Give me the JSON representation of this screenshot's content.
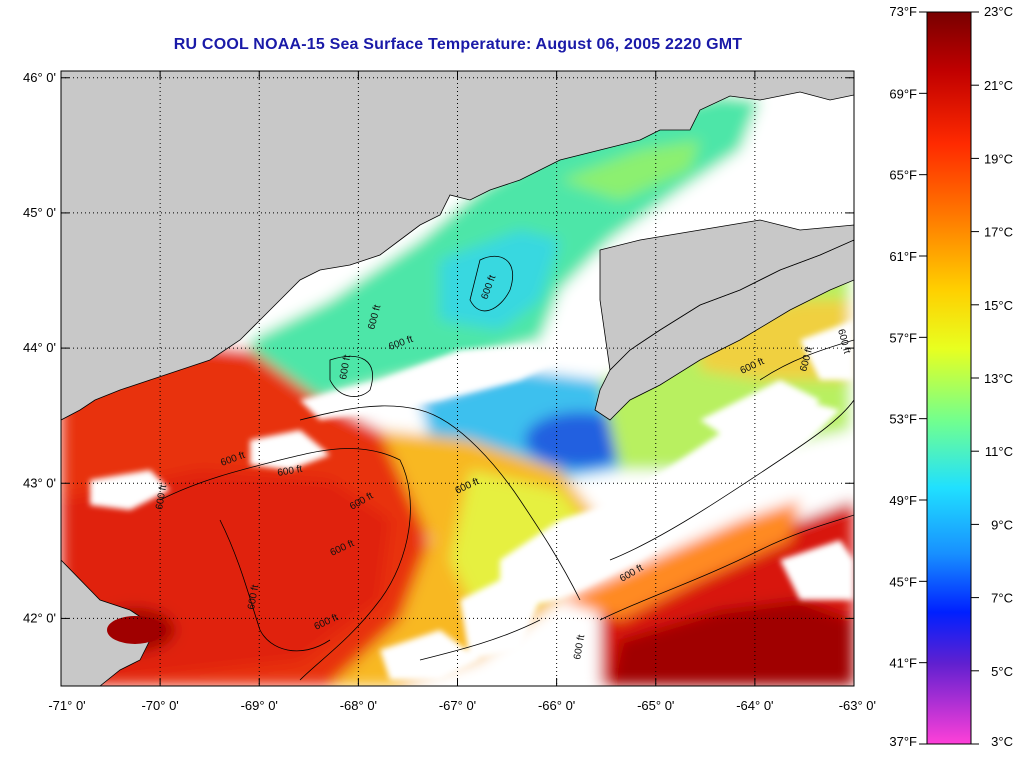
{
  "title": "RU COOL  NOAA-15  Sea Surface Temperature:  August 06, 2005 2220 GMT",
  "map": {
    "lat_ticks": [
      "46° 0'",
      "45° 0'",
      "44° 0'",
      "43° 0'",
      "42° 0'"
    ],
    "lon_ticks": [
      "-71° 0'",
      "-70° 0'",
      "-69° 0'",
      "-68° 0'",
      "-67° 0'",
      "-66° 0'",
      "-65° 0'",
      "-64° 0'",
      "-63° 0'"
    ],
    "lat_range": [
      41.5,
      46.05
    ],
    "lon_range": [
      -71,
      -63
    ],
    "contour_label": "600 ft",
    "colors": {
      "land": "#c8c8c8",
      "no_data": "#ffffff",
      "warm": "#e8200a",
      "hot": "#a00000",
      "cool": "#33ccee",
      "cold": "#1e5adc"
    }
  },
  "colorbar": {
    "fahrenheit": [
      "73°F",
      "69°F",
      "65°F",
      "61°F",
      "57°F",
      "53°F",
      "49°F",
      "45°F",
      "41°F",
      "37°F"
    ],
    "celsius": [
      "23°C",
      "21°C",
      "19°C",
      "17°C",
      "15°C",
      "13°C",
      "11°C",
      "9°C",
      "7°C",
      "5°C",
      "3°C"
    ]
  }
}
